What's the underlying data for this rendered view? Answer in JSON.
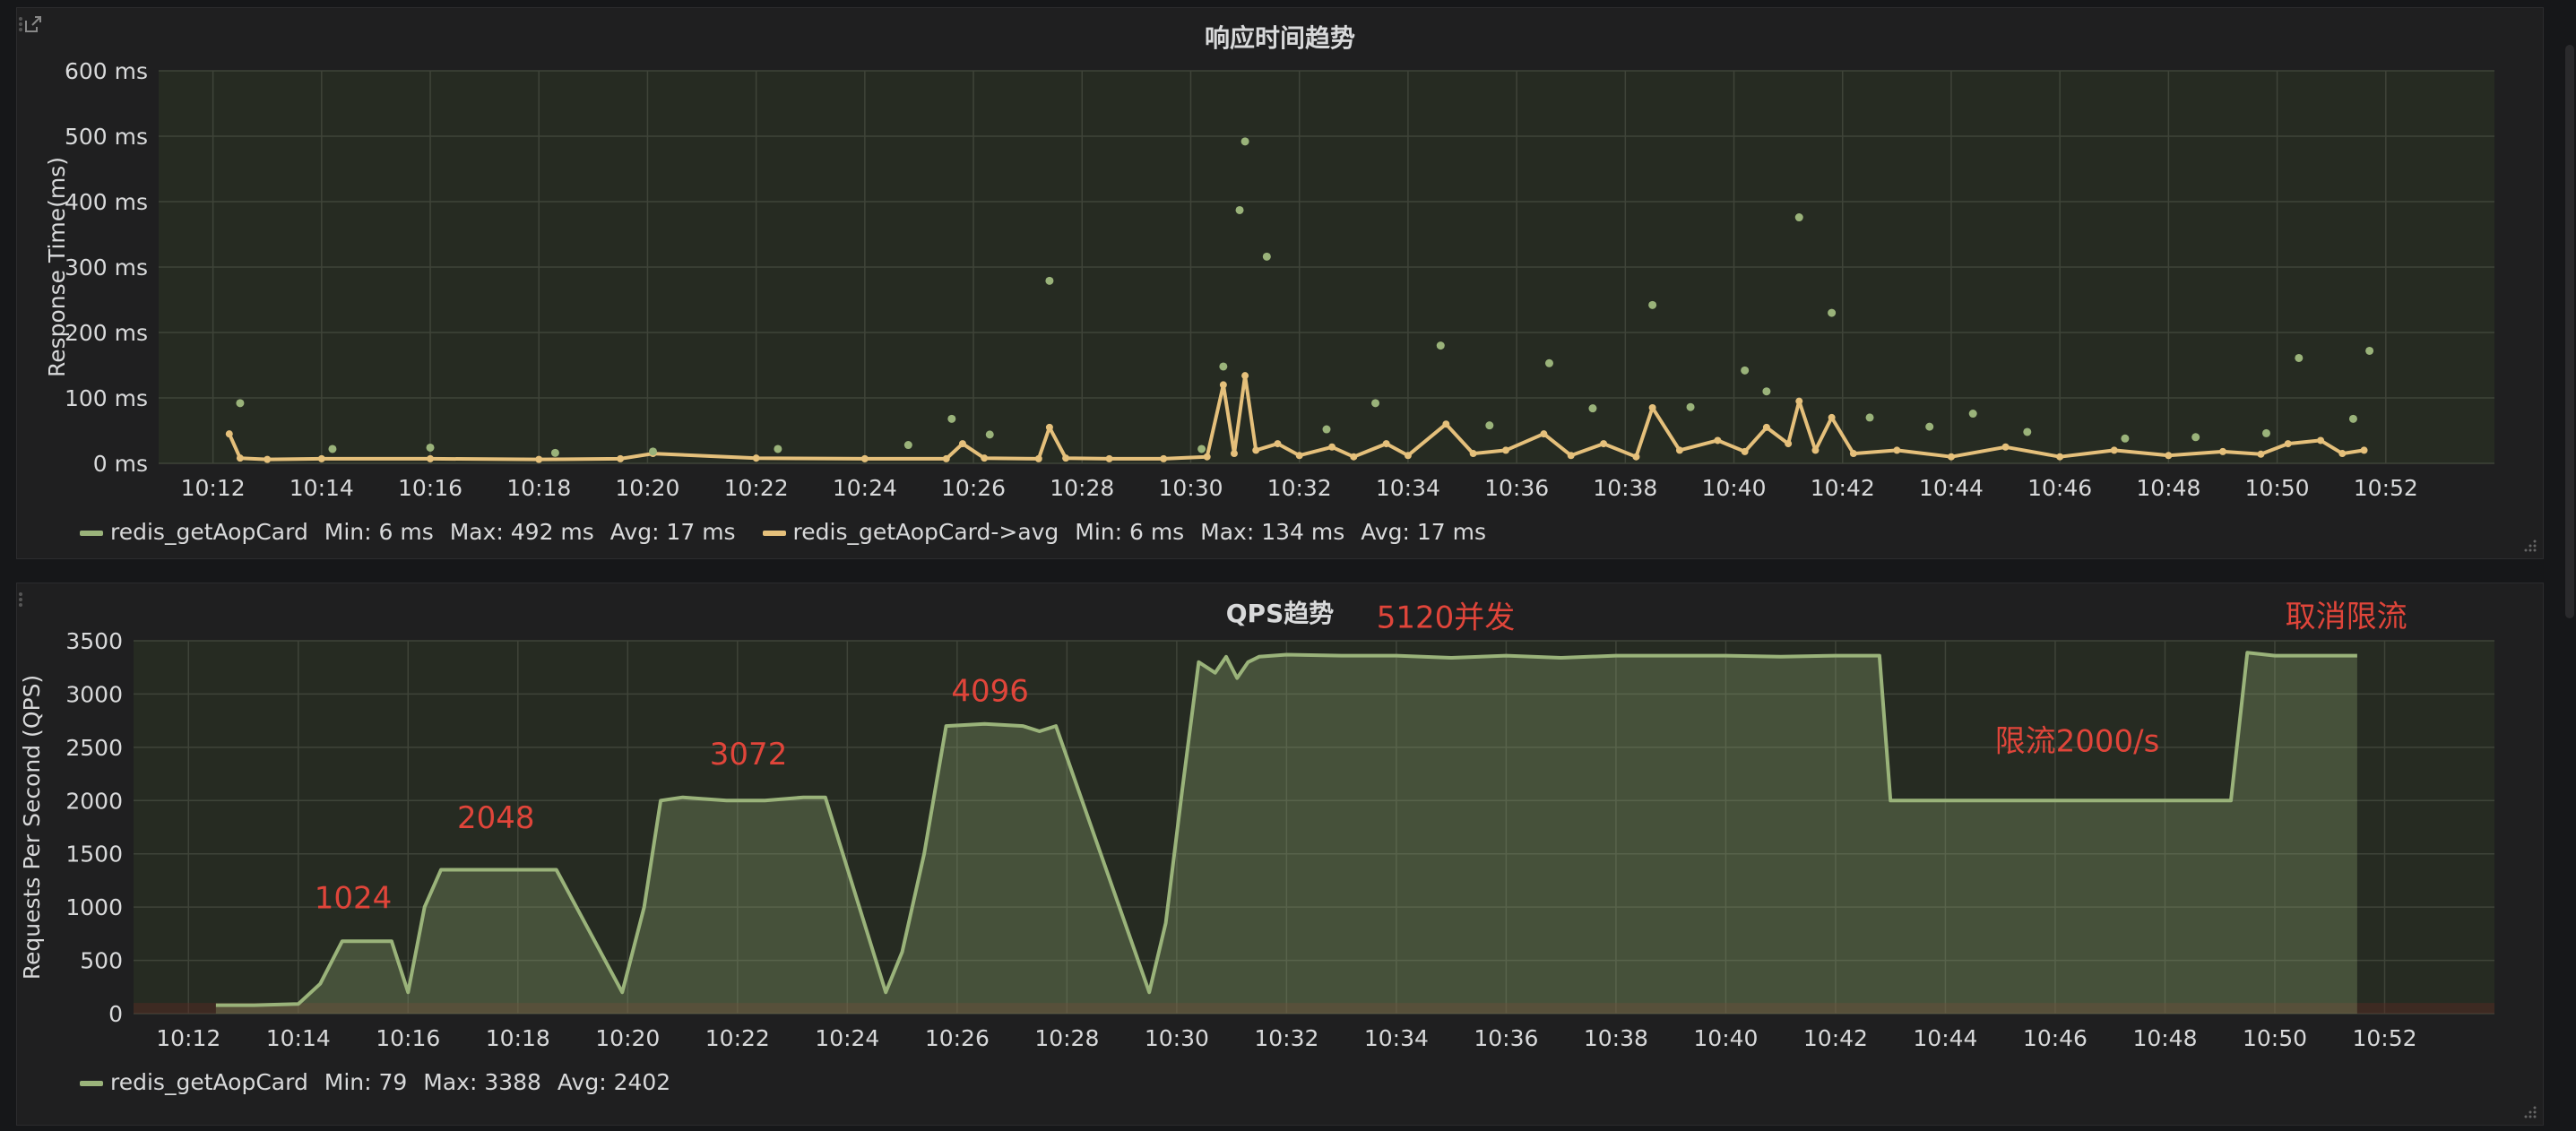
{
  "panels": [
    {
      "title": "响应时间趋势",
      "legend": [
        {
          "name": "redis_getAopCard",
          "color": "#9ab37a",
          "min": "Min: 6 ms",
          "max": "Max: 492 ms",
          "avg": "Avg: 17 ms"
        },
        {
          "name": "redis_getAopCard->avg",
          "color": "#e5c07b",
          "min": "Min: 6 ms",
          "max": "Max: 134 ms",
          "avg": "Avg: 17 ms"
        }
      ]
    },
    {
      "title": "QPS趋势",
      "legend": [
        {
          "name": "redis_getAopCard",
          "color": "#9ab37a",
          "min": "Min: 79",
          "max": "Max: 3388",
          "avg": "Avg: 2402"
        }
      ]
    }
  ],
  "chart_data": [
    {
      "type": "scatter",
      "title": "响应时间趋势",
      "ylabel": "Response Time(ms)",
      "ylim": [
        0,
        600
      ],
      "yticks": [
        0,
        100,
        200,
        300,
        400,
        500,
        600
      ],
      "ytick_labels": [
        "0 ms",
        "100 ms",
        "200 ms",
        "300 ms",
        "400 ms",
        "500 ms",
        "600 ms"
      ],
      "xlim": [
        "10:11",
        "10:54"
      ],
      "xticks": [
        "10:12",
        "10:14",
        "10:16",
        "10:18",
        "10:20",
        "10:22",
        "10:24",
        "10:26",
        "10:28",
        "10:30",
        "10:32",
        "10:34",
        "10:36",
        "10:38",
        "10:40",
        "10:42",
        "10:44",
        "10:46",
        "10:48",
        "10:50",
        "10:52"
      ],
      "grid": true,
      "legend_position": "bottom-left",
      "series": [
        {
          "name": "redis_getAopCard",
          "color": "#9ab37a",
          "style": "points",
          "x": [
            "10:12.5",
            "10:14.2",
            "10:16.0",
            "10:18.3",
            "10:20.1",
            "10:22.4",
            "10:24.8",
            "10:25.6",
            "10:26.3",
            "10:27.4",
            "10:30.2",
            "10:30.6",
            "10:30.9",
            "10:31.0",
            "10:31.4",
            "10:32.5",
            "10:33.4",
            "10:34.6",
            "10:35.5",
            "10:36.6",
            "10:37.4",
            "10:38.5",
            "10:39.2",
            "10:40.2",
            "10:40.6",
            "10:41.2",
            "10:41.8",
            "10:42.5",
            "10:43.6",
            "10:44.4",
            "10:45.4",
            "10:47.2",
            "10:48.5",
            "10:49.8",
            "10:50.4",
            "10:51.4",
            "10:51.7"
          ],
          "y": [
            92,
            22,
            24,
            16,
            18,
            22,
            28,
            68,
            44,
            279,
            22,
            148,
            387,
            492,
            316,
            52,
            92,
            180,
            58,
            153,
            84,
            242,
            86,
            142,
            110,
            376,
            230,
            70,
            56,
            76,
            48,
            38,
            40,
            46,
            161,
            68,
            172
          ]
        },
        {
          "name": "redis_getAopCard->avg",
          "color": "#e5c07b",
          "style": "line",
          "x": [
            "10:12.3",
            "10:12.5",
            "10:13.0",
            "10:14.0",
            "10:16.0",
            "10:18.0",
            "10:19.5",
            "10:20.1",
            "10:22.0",
            "10:24.0",
            "10:25.5",
            "10:25.8",
            "10:26.2",
            "10:27.2",
            "10:27.4",
            "10:27.7",
            "10:28.5",
            "10:29.5",
            "10:30.3",
            "10:30.6",
            "10:30.8",
            "10:31.0",
            "10:31.2",
            "10:31.6",
            "10:32.0",
            "10:32.6",
            "10:33.0",
            "10:33.6",
            "10:34.0",
            "10:34.7",
            "10:35.2",
            "10:35.8",
            "10:36.5",
            "10:37.0",
            "10:37.6",
            "10:38.2",
            "10:38.5",
            "10:39.0",
            "10:39.7",
            "10:40.2",
            "10:40.6",
            "10:41.0",
            "10:41.2",
            "10:41.5",
            "10:41.8",
            "10:42.2",
            "10:43.0",
            "10:44.0",
            "10:45.0",
            "10:46.0",
            "10:47.0",
            "10:48.0",
            "10:49.0",
            "10:49.7",
            "10:50.2",
            "10:50.8",
            "10:51.2",
            "10:51.6"
          ],
          "y": [
            45,
            8,
            6,
            7,
            7,
            6,
            7,
            15,
            8,
            7,
            7,
            30,
            8,
            7,
            55,
            8,
            7,
            7,
            10,
            120,
            15,
            134,
            20,
            30,
            12,
            25,
            10,
            30,
            12,
            60,
            15,
            20,
            45,
            12,
            30,
            10,
            85,
            20,
            35,
            18,
            55,
            30,
            95,
            20,
            70,
            15,
            20,
            10,
            25,
            10,
            20,
            12,
            18,
            14,
            30,
            35,
            15,
            20
          ]
        }
      ]
    },
    {
      "type": "area",
      "title": "QPS趋势",
      "ylabel": "Requests Per Second (QPS)",
      "ylim": [
        0,
        3500
      ],
      "yticks": [
        0,
        500,
        1000,
        1500,
        2000,
        2500,
        3000,
        3500
      ],
      "xlim": [
        "10:11",
        "10:54"
      ],
      "xticks": [
        "10:12",
        "10:14",
        "10:16",
        "10:18",
        "10:20",
        "10:22",
        "10:24",
        "10:26",
        "10:28",
        "10:30",
        "10:32",
        "10:34",
        "10:36",
        "10:38",
        "10:40",
        "10:42",
        "10:44",
        "10:46",
        "10:48",
        "10:50",
        "10:52"
      ],
      "grid": true,
      "legend_position": "bottom-left",
      "series": [
        {
          "name": "redis_getAopCard",
          "color": "#9ab37a",
          "x": [
            "10:12.5",
            "10:13.2",
            "10:14.0",
            "10:14.4",
            "10:14.8",
            "10:15.3",
            "10:15.7",
            "10:16.0",
            "10:16.3",
            "10:16.6",
            "10:17.5",
            "10:18.7",
            "10:19.9",
            "10:20.3",
            "10:20.6",
            "10:21.0",
            "10:21.8",
            "10:22.5",
            "10:23.2",
            "10:23.6",
            "10:24.7",
            "10:25.0",
            "10:25.4",
            "10:25.8",
            "10:26.5",
            "10:27.2",
            "10:27.5",
            "10:27.8",
            "10:29.5",
            "10:29.8",
            "10:30.1",
            "10:30.4",
            "10:30.7",
            "10:30.9",
            "10:31.1",
            "10:31.3",
            "10:31.5",
            "10:32.0",
            "10:33.0",
            "10:34.0",
            "10:35.0",
            "10:36.0",
            "10:37.0",
            "10:38.0",
            "10:39.0",
            "10:40.0",
            "10:41.0",
            "10:42.0",
            "10:42.8",
            "10:43.0",
            "10:44.0",
            "10:45.0",
            "10:46.0",
            "10:47.0",
            "10:48.0",
            "10:49.2",
            "10:49.5",
            "10:50.0",
            "10:51.0",
            "10:51.5"
          ],
          "y": [
            79,
            79,
            90,
            280,
            680,
            680,
            680,
            200,
            1000,
            1350,
            1350,
            1350,
            200,
            1000,
            2000,
            2030,
            2000,
            2000,
            2030,
            2030,
            200,
            580,
            1500,
            2700,
            2720,
            2700,
            2650,
            2700,
            200,
            850,
            2100,
            3300,
            3200,
            3350,
            3150,
            3300,
            3350,
            3370,
            3360,
            3360,
            3340,
            3360,
            3340,
            3360,
            3360,
            3360,
            3350,
            3360,
            3360,
            2000,
            2000,
            2000,
            2000,
            2000,
            2000,
            2000,
            3388,
            3360,
            3360,
            3360
          ]
        }
      ],
      "annotations": [
        {
          "text": "1024",
          "x": "10:15.0",
          "y": 990
        },
        {
          "text": "2048",
          "x": "10:17.6",
          "y": 1740
        },
        {
          "text": "3072",
          "x": "10:22.2",
          "y": 2340
        },
        {
          "text": "4096",
          "x": "10:26.6",
          "y": 2930
        },
        {
          "text": "5120并发",
          "x": "10:34.9",
          "y": 3620
        },
        {
          "text": "限流2000/s",
          "x": "10:46.4",
          "y": 2460
        },
        {
          "text": "取消限流",
          "x": "10:51.3",
          "y": 3630
        }
      ],
      "annotation_color": "#e0453a",
      "threshold": 100
    }
  ]
}
